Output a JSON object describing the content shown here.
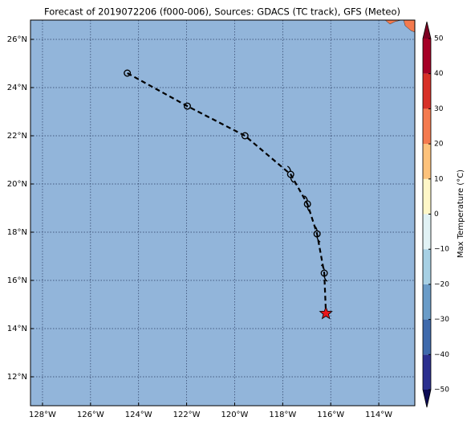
{
  "title": "Forecast of 2019072206 (f000-006), Sources: GDACS (TC track), GFS (Meteo)",
  "map": {
    "xlim": [
      -128.5,
      -112.5
    ],
    "ylim": [
      10.8,
      26.8
    ],
    "ocean_color": "#92b5da",
    "grid": true,
    "xticks": [
      {
        "value": -128,
        "label": "128°W"
      },
      {
        "value": -126,
        "label": "126°W"
      },
      {
        "value": -124,
        "label": "124°W"
      },
      {
        "value": -122,
        "label": "122°W"
      },
      {
        "value": -120,
        "label": "120°W"
      },
      {
        "value": -118,
        "label": "118°W"
      },
      {
        "value": -116,
        "label": "116°W"
      },
      {
        "value": -114,
        "label": "114°W"
      }
    ],
    "yticks": [
      {
        "value": 12,
        "label": "12°N"
      },
      {
        "value": 14,
        "label": "14°N"
      },
      {
        "value": 16,
        "label": "16°N"
      },
      {
        "value": 18,
        "label": "18°N"
      },
      {
        "value": 20,
        "label": "20°N"
      },
      {
        "value": 22,
        "label": "22°N"
      },
      {
        "value": 24,
        "label": "24°N"
      },
      {
        "value": 26,
        "label": "26°N"
      }
    ]
  },
  "track": {
    "lon": [
      -124.47,
      -121.97,
      -119.57,
      -117.67,
      -116.97,
      -116.57,
      -116.27
    ],
    "lat": [
      24.6,
      23.23,
      22.0,
      20.4,
      19.17,
      17.93,
      16.3
    ],
    "color": "#000000"
  },
  "current_position": {
    "lon": -116.2,
    "lat": 14.63,
    "color": "#e8161b"
  },
  "colorbar": {
    "label": "Max Temperature (°C)",
    "lim": [
      -50,
      50
    ],
    "levels": [
      -50,
      -40,
      -30,
      -20,
      -10,
      0,
      10,
      20,
      30,
      40,
      50
    ],
    "colors": [
      "#2b2f8f",
      "#3f6aac",
      "#6a9cc8",
      "#a7d0e4",
      "#e1f2f5",
      "#fef7c8",
      "#fdc27b",
      "#f47a4e",
      "#d73027",
      "#a50026"
    ],
    "extend_colors": [
      "#0c0b55",
      "#7d0022"
    ],
    "ticks": [
      {
        "value": -50,
        "label": "−50"
      },
      {
        "value": -40,
        "label": "−40"
      },
      {
        "value": -30,
        "label": "−30"
      },
      {
        "value": -20,
        "label": "−20"
      },
      {
        "value": -10,
        "label": "−10"
      },
      0,
      10,
      20,
      30,
      40,
      50
    ]
  }
}
